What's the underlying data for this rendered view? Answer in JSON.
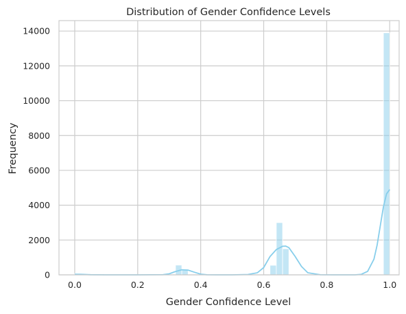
{
  "chart_data": {
    "type": "bar",
    "title": "Distribution of Gender Confidence Levels",
    "xlabel": "Gender Confidence Level",
    "ylabel": "Frequency",
    "xlim": [
      -0.05,
      1.03
    ],
    "ylim": [
      0,
      14600
    ],
    "x_ticks": [
      0.0,
      0.2,
      0.4,
      0.6,
      0.8,
      1.0
    ],
    "x_tick_labels": [
      "0.0",
      "0.2",
      "0.4",
      "0.6",
      "0.8",
      "1.0"
    ],
    "y_ticks": [
      0,
      2000,
      4000,
      6000,
      8000,
      10000,
      12000,
      14000
    ],
    "y_tick_labels": [
      "0",
      "2000",
      "4000",
      "6000",
      "8000",
      "10000",
      "12000",
      "14000"
    ],
    "grid": true,
    "legend": "none",
    "histogram": {
      "bin_edges": [
        0.0,
        0.02,
        0.04,
        0.06,
        0.08,
        0.1,
        0.12,
        0.14,
        0.16,
        0.18,
        0.2,
        0.22,
        0.24,
        0.26,
        0.28,
        0.3,
        0.32,
        0.34,
        0.36,
        0.38,
        0.4,
        0.42,
        0.44,
        0.46,
        0.48,
        0.5,
        0.52,
        0.54,
        0.56,
        0.58,
        0.6,
        0.62,
        0.64,
        0.66,
        0.68,
        0.7,
        0.72,
        0.74,
        0.76,
        0.78,
        0.8,
        0.82,
        0.84,
        0.86,
        0.88,
        0.9,
        0.92,
        0.94,
        0.96,
        0.98,
        1.0
      ],
      "counts": [
        70,
        0,
        0,
        0,
        0,
        0,
        0,
        0,
        0,
        0,
        0,
        0,
        0,
        0,
        0,
        0,
        560,
        320,
        0,
        0,
        0,
        0,
        0,
        0,
        0,
        0,
        0,
        0,
        0,
        0,
        0,
        550,
        3000,
        1500,
        0,
        0,
        0,
        0,
        0,
        0,
        0,
        0,
        0,
        0,
        0,
        0,
        0,
        0,
        0,
        13900
      ]
    },
    "kde": {
      "x": [
        0.0,
        0.02,
        0.05,
        0.1,
        0.2,
        0.28,
        0.3,
        0.32,
        0.34,
        0.36,
        0.38,
        0.4,
        0.42,
        0.45,
        0.5,
        0.55,
        0.58,
        0.6,
        0.62,
        0.64,
        0.66,
        0.67,
        0.68,
        0.7,
        0.72,
        0.74,
        0.78,
        0.82,
        0.86,
        0.89,
        0.91,
        0.93,
        0.95,
        0.96,
        0.97,
        0.98,
        0.99,
        1.0
      ],
      "y": [
        35,
        30,
        8,
        0,
        0,
        10,
        60,
        190,
        290,
        270,
        150,
        40,
        5,
        0,
        0,
        20,
        120,
        420,
        1050,
        1450,
        1640,
        1650,
        1560,
        1050,
        480,
        120,
        5,
        0,
        0,
        0,
        30,
        200,
        900,
        1700,
        2800,
        3900,
        4650,
        4900
      ]
    }
  }
}
